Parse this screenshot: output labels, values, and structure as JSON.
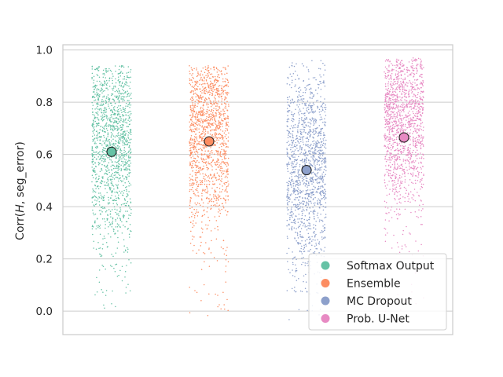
{
  "chart_data": {
    "type": "scatter",
    "title": "",
    "xlabel": "",
    "ylabel_prefix": "Corr(",
    "ylabel_italic": "H",
    "ylabel_suffix": ", seg_error)",
    "ylim": [
      -0.09,
      1.02
    ],
    "yticks": [
      0.0,
      0.2,
      0.4,
      0.6,
      0.8,
      1.0
    ],
    "ytick_labels": [
      "0.0",
      "0.2",
      "0.4",
      "0.6",
      "0.8",
      "1.0"
    ],
    "grid": "y",
    "legend_position": "lower-right",
    "series": [
      {
        "name": "Softmax Output",
        "color": "#66c2a5",
        "mean": 0.61,
        "min": 0.0,
        "max": 0.94,
        "spread_center": 0.66,
        "spread_sd": 0.2
      },
      {
        "name": "Ensemble",
        "color": "#fc8d62",
        "mean": 0.65,
        "min": -0.02,
        "max": 0.94,
        "spread_center": 0.7,
        "spread_sd": 0.18
      },
      {
        "name": "MC Dropout",
        "color": "#8da0cb",
        "mean": 0.54,
        "min": -0.04,
        "max": 0.96,
        "spread_center": 0.55,
        "spread_sd": 0.2
      },
      {
        "name": "Prob. U-Net",
        "color": "#e78ac3",
        "mean": 0.665,
        "min": 0.0,
        "max": 0.97,
        "spread_center": 0.73,
        "spread_sd": 0.17
      }
    ]
  }
}
